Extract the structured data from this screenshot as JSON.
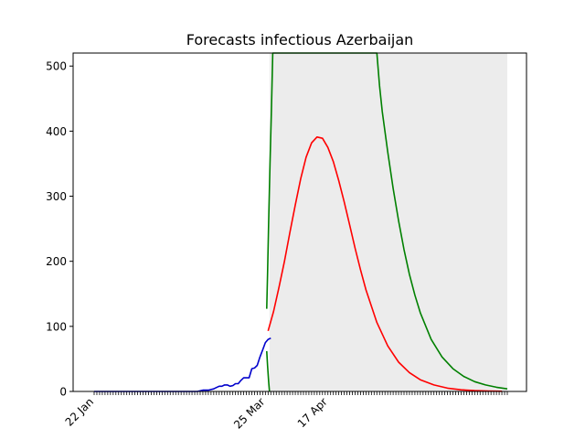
{
  "chart_data": {
    "type": "line",
    "title": "Forecasts infectious Azerbaijan",
    "xlabel": "",
    "ylabel": "",
    "x_unit": "days since 22 Jan",
    "xlim": [
      0,
      152
    ],
    "ylim": [
      0,
      520
    ],
    "y_ticks": [
      0,
      100,
      200,
      300,
      400,
      500
    ],
    "x_tick_labels": [
      {
        "day": 0,
        "label": "22 Jan"
      },
      {
        "day": 63,
        "label": "25 Mar"
      },
      {
        "day": 86,
        "label": "17 Apr"
      }
    ],
    "series": [
      {
        "name": "observed",
        "color": "#0000cc",
        "points": [
          [
            0,
            0
          ],
          [
            10,
            0
          ],
          [
            20,
            0
          ],
          [
            30,
            0
          ],
          [
            38,
            0
          ],
          [
            40,
            2
          ],
          [
            42,
            2
          ],
          [
            44,
            4
          ],
          [
            45,
            6
          ],
          [
            46,
            8
          ],
          [
            47,
            8
          ],
          [
            48,
            10
          ],
          [
            49,
            10
          ],
          [
            50,
            8
          ],
          [
            51,
            9
          ],
          [
            52,
            12
          ],
          [
            53,
            12
          ],
          [
            54,
            17
          ],
          [
            55,
            21
          ],
          [
            56,
            21
          ],
          [
            57,
            21
          ],
          [
            58,
            35
          ],
          [
            59,
            36
          ],
          [
            60,
            40
          ],
          [
            61,
            53
          ],
          [
            62,
            64
          ],
          [
            63,
            75
          ],
          [
            64,
            80
          ],
          [
            65,
            82
          ]
        ]
      },
      {
        "name": "forecast median",
        "color": "#ff0000",
        "points": [
          [
            64,
            93
          ],
          [
            66,
            123
          ],
          [
            68,
            160
          ],
          [
            70,
            200
          ],
          [
            72,
            244
          ],
          [
            74,
            287
          ],
          [
            76,
            327
          ],
          [
            78,
            360
          ],
          [
            80,
            382
          ],
          [
            82,
            391
          ],
          [
            84,
            389
          ],
          [
            86,
            375
          ],
          [
            88,
            353
          ],
          [
            90,
            324
          ],
          [
            92,
            291
          ],
          [
            94,
            256
          ],
          [
            96,
            220
          ],
          [
            98,
            187
          ],
          [
            100,
            156
          ],
          [
            104,
            106
          ],
          [
            108,
            70
          ],
          [
            112,
            45
          ],
          [
            116,
            29
          ],
          [
            120,
            18
          ],
          [
            125,
            10
          ],
          [
            130,
            5
          ],
          [
            135,
            2.5
          ],
          [
            140,
            1.3
          ],
          [
            145,
            0.6
          ],
          [
            150,
            0.3
          ]
        ]
      },
      {
        "name": "forecast upper bound",
        "color": "#008000",
        "points": [
          [
            63.5,
            127
          ],
          [
            63.8,
            180
          ],
          [
            64.2,
            260
          ],
          [
            64.7,
            350
          ],
          [
            65.2,
            430
          ],
          [
            65.7,
            520
          ],
          [
            104,
            520
          ],
          [
            105,
            470
          ],
          [
            106,
            430
          ],
          [
            108,
            368
          ],
          [
            110,
            312
          ],
          [
            112,
            262
          ],
          [
            114,
            218
          ],
          [
            116,
            180
          ],
          [
            118,
            148
          ],
          [
            120,
            121
          ],
          [
            124,
            80
          ],
          [
            128,
            53
          ],
          [
            132,
            35
          ],
          [
            136,
            23
          ],
          [
            140,
            15
          ],
          [
            144,
            10
          ],
          [
            148,
            6.5
          ],
          [
            152,
            4
          ]
        ]
      },
      {
        "name": "forecast lower bound",
        "color": "#008000",
        "points": [
          [
            63.5,
            62
          ],
          [
            63.8,
            40
          ],
          [
            64.2,
            15
          ],
          [
            64.5,
            0
          ]
        ]
      }
    ],
    "band": {
      "name": "forecast range",
      "color": "#ececec",
      "x_start": 64.5,
      "x_end": 152
    }
  }
}
